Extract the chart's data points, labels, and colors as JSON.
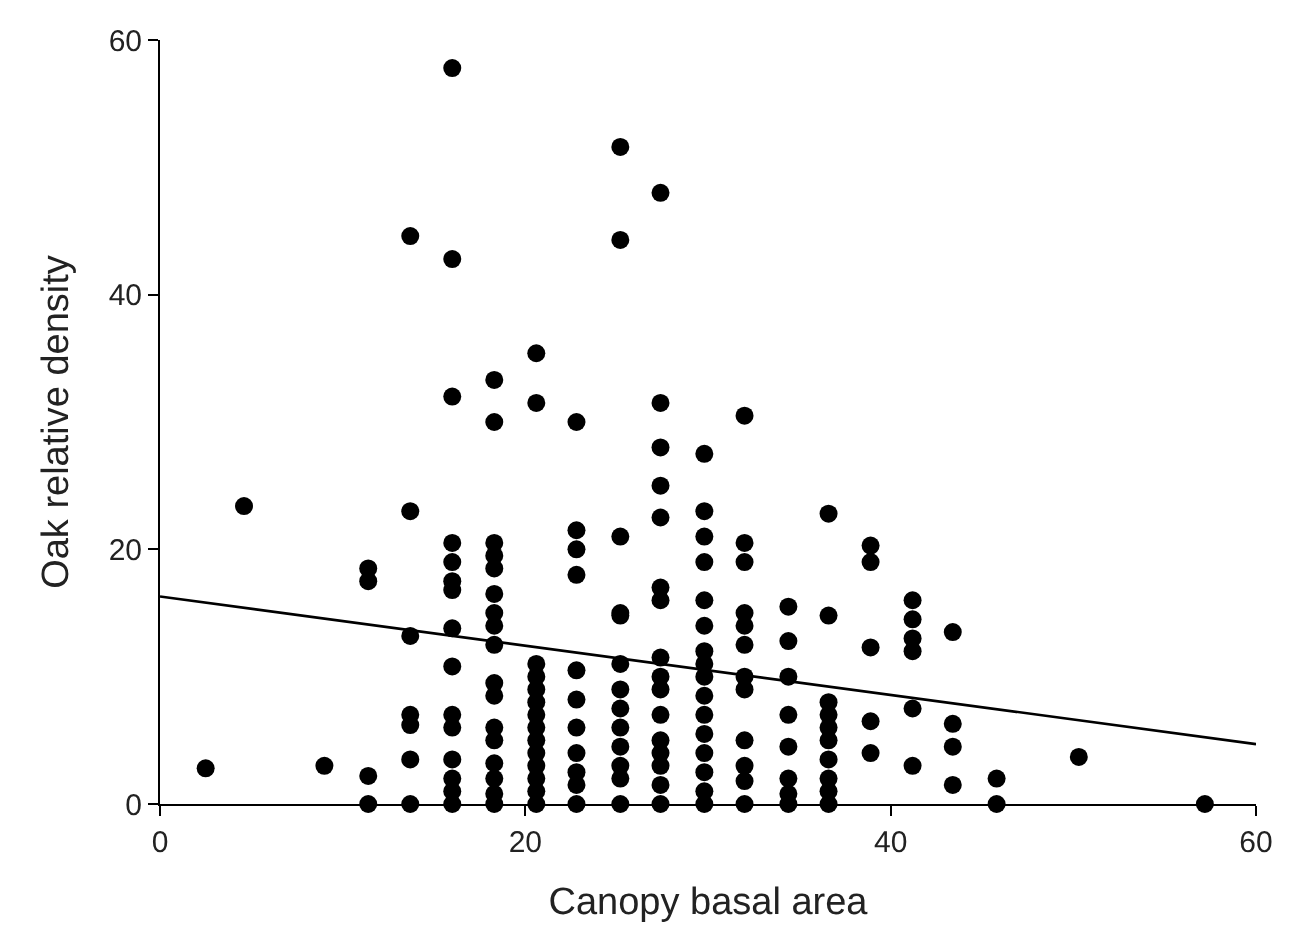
{
  "chart_data": {
    "type": "scatter",
    "xlabel": "Canopy basal area",
    "ylabel": "Oak relative density",
    "xlim": [
      0,
      60
    ],
    "ylim": [
      0,
      60
    ],
    "xticks": [
      0,
      20,
      40,
      60
    ],
    "yticks": [
      0,
      20,
      40,
      60
    ],
    "grid": false,
    "marker": "circle",
    "series": [
      {
        "color": "#000000",
        "x": [
          2.5,
          4.6,
          9,
          11.4,
          11.4,
          11.4,
          11.4,
          13.7,
          13.7,
          13.7,
          13.7,
          13.7,
          13.7,
          13.7,
          16,
          16,
          16,
          16,
          16,
          16,
          16,
          16,
          16,
          16,
          16,
          16,
          16,
          16,
          16,
          18.3,
          18.3,
          18.3,
          18.3,
          18.3,
          18.3,
          18.3,
          18.3,
          18.3,
          18.3,
          18.3,
          18.3,
          18.3,
          18.3,
          18.3,
          18.3,
          18.3,
          20.6,
          20.6,
          20.6,
          20.6,
          20.6,
          20.6,
          20.6,
          20.6,
          20.6,
          20.6,
          20.6,
          20.6,
          20.6,
          20.6,
          22.8,
          22.8,
          22.8,
          22.8,
          22.8,
          22.8,
          22.8,
          22.8,
          22.8,
          22.8,
          22.8,
          25.2,
          25.2,
          25.2,
          25.2,
          25.2,
          25.2,
          25.2,
          25.2,
          25.2,
          25.2,
          25.2,
          25.2,
          25.2,
          27.4,
          27.4,
          27.4,
          27.4,
          27.4,
          27.4,
          27.4,
          27.4,
          27.4,
          27.4,
          27.4,
          27.4,
          27.4,
          27.4,
          27.4,
          27.4,
          29.8,
          29.8,
          29.8,
          29.8,
          29.8,
          29.8,
          29.8,
          29.8,
          29.8,
          29.8,
          29.8,
          29.8,
          29.8,
          29.8,
          29.8,
          29.8,
          32,
          32,
          32,
          32,
          32,
          32,
          32,
          32,
          32,
          32,
          32,
          32,
          34.4,
          34.4,
          34.4,
          34.4,
          34.4,
          34.4,
          34.4,
          34.4,
          36.6,
          36.6,
          36.6,
          36.6,
          36.6,
          36.6,
          36.6,
          36.6,
          36.6,
          36.6,
          38.9,
          38.9,
          38.9,
          38.9,
          38.9,
          41.2,
          41.2,
          41.2,
          41.2,
          41.2,
          41.2,
          43.4,
          43.4,
          43.4,
          43.4,
          45.8,
          45.8,
          50.3,
          57.2
        ],
        "values": [
          2.8,
          23.4,
          3,
          0,
          2.2,
          17.5,
          18.5,
          0,
          3.5,
          6.2,
          7,
          13.2,
          23,
          44.6,
          0,
          1,
          2,
          3.5,
          6,
          7,
          10.8,
          13.8,
          16.8,
          17.5,
          19,
          20.5,
          32,
          42.8,
          57.8,
          0,
          0.8,
          2,
          3.2,
          5,
          6,
          8.5,
          9.5,
          12.5,
          14,
          15,
          16.5,
          18.5,
          19.5,
          20.5,
          30,
          33.3,
          0,
          1,
          2,
          3,
          4,
          5,
          6,
          7,
          8,
          9,
          10,
          11,
          31.5,
          35.4,
          0,
          1.5,
          2.5,
          4,
          6,
          8.2,
          10.5,
          18,
          20,
          21.5,
          30,
          0,
          2,
          3,
          4.5,
          6,
          7.5,
          9,
          11,
          14.8,
          15,
          21,
          44.3,
          51.6,
          0,
          1.5,
          3,
          4,
          5,
          7,
          9,
          10,
          11.5,
          16,
          17,
          22.5,
          25,
          28,
          31.5,
          48,
          0,
          1,
          2.5,
          4,
          5.5,
          7,
          8.5,
          10,
          11,
          12,
          14,
          16,
          19,
          21,
          23,
          27.5,
          0,
          1.8,
          3,
          5,
          9,
          10,
          12.5,
          14,
          15,
          19,
          20.5,
          30.5,
          0,
          0.8,
          2,
          4.5,
          7,
          10,
          12.8,
          15.5,
          0,
          1,
          2,
          3.5,
          5,
          6,
          7,
          8,
          14.8,
          22.8,
          4,
          6.5,
          12.3,
          19,
          20.3,
          3,
          7.5,
          12,
          13,
          14.5,
          16,
          1.5,
          4.5,
          6.3,
          13.5,
          0,
          2,
          3.7,
          0
        ]
      },
      {
        "type": "line",
        "color": "#000000",
        "marker": "none",
        "line_style": "solid",
        "x": [
          0,
          60
        ],
        "values": [
          16.3,
          4.7
        ]
      }
    ]
  }
}
